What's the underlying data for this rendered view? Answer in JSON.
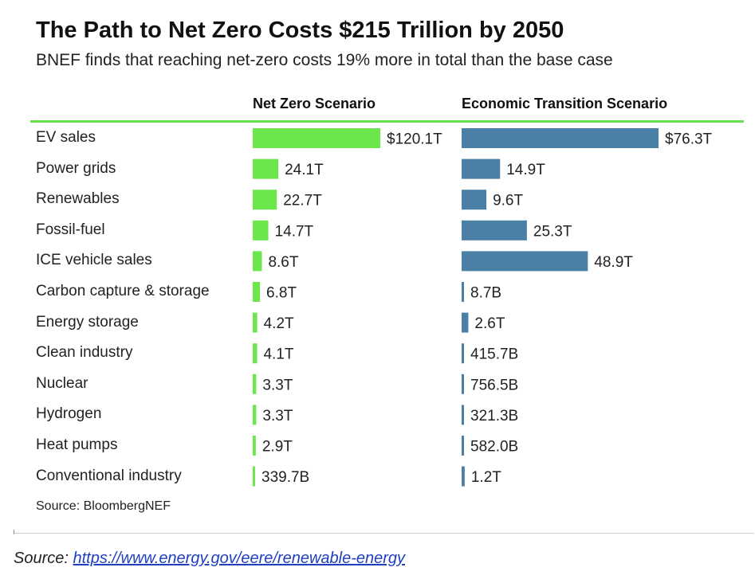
{
  "chart_data": {
    "type": "bar",
    "title": "The Path to Net Zero Costs $215 Trillion by 2050",
    "subtitle": "BNEF finds that reaching net-zero costs 19% more in total than the base case",
    "categories": [
      "EV sales",
      "Power grids",
      "Renewables",
      "Fossil-fuel",
      "ICE vehicle sales",
      "Carbon capture & storage",
      "Energy storage",
      "Clean industry",
      "Nuclear",
      "Hydrogen",
      "Heat pumps",
      "Conventional industry"
    ],
    "series": [
      {
        "name": "Net Zero Scenario",
        "color": "#6be64b",
        "values": [
          120.1,
          24.1,
          22.7,
          14.7,
          8.6,
          6.8,
          4.2,
          4.1,
          3.3,
          3.3,
          2.9,
          0.3397
        ],
        "labels": [
          "$120.1T",
          "24.1T",
          "22.7T",
          "14.7T",
          "8.6T",
          "6.8T",
          "4.2T",
          "4.1T",
          "3.3T",
          "3.3T",
          "2.9T",
          "339.7B"
        ]
      },
      {
        "name": "Economic Transition Scenario",
        "color": "#4a80a6",
        "values": [
          76.3,
          14.9,
          9.6,
          25.3,
          48.9,
          0.0087,
          2.6,
          0.4157,
          0.7565,
          0.3213,
          0.582,
          1.2
        ],
        "labels": [
          "$76.3T",
          "14.9T",
          "9.6T",
          "25.3T",
          "48.9T",
          "8.7B",
          "2.6T",
          "415.7B",
          "756.5B",
          "321.3B",
          "582.0B",
          "1.2T"
        ]
      }
    ],
    "unit": "trillion USD",
    "accent_rule_color": "#66e34c"
  },
  "source_note": "Source: BloombergNEF",
  "footer": {
    "label": "Source:",
    "link_text": "https://www.energy.gov/eere/renewable-energy"
  }
}
